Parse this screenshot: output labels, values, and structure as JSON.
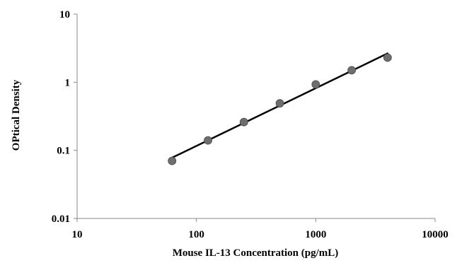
{
  "chart_data": {
    "type": "scatter",
    "xlabel": "Mouse IL-13  Concentration (pg/mL)",
    "ylabel": "OPtical Density",
    "xscale": "log",
    "yscale": "log",
    "xlim": [
      10,
      10000
    ],
    "ylim": [
      0.01,
      10
    ],
    "xticks": [
      "10",
      "100",
      "1000",
      "10000"
    ],
    "yticks": [
      "0.01",
      "0.1",
      "1",
      "10"
    ],
    "grid": false,
    "series": [
      {
        "points": [
          {
            "x": 62.5,
            "y": 0.07
          },
          {
            "x": 125,
            "y": 0.14
          },
          {
            "x": 250,
            "y": 0.26
          },
          {
            "x": 500,
            "y": 0.49
          },
          {
            "x": 1000,
            "y": 0.93
          },
          {
            "x": 2000,
            "y": 1.5
          },
          {
            "x": 4000,
            "y": 2.3
          }
        ],
        "marker_color": "#6e6e6e"
      }
    ],
    "fit_line": {
      "type": "power",
      "x_range": [
        62.5,
        4000
      ],
      "y_range": [
        0.078,
        2.65
      ],
      "color": "#000000"
    }
  }
}
